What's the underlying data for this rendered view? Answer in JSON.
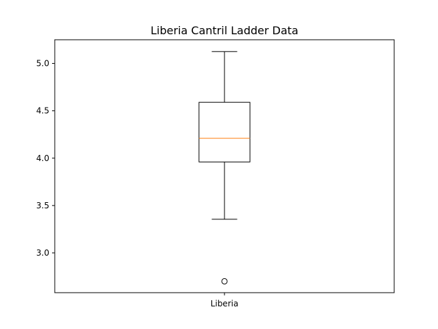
{
  "chart_data": {
    "type": "box",
    "title": "Liberia Cantril Ladder Data",
    "xlabel": "",
    "ylabel": "",
    "categories": [
      "Liberia"
    ],
    "boxes": [
      {
        "name": "Liberia",
        "whisker_low": 3.355,
        "q1": 3.96,
        "median": 4.21,
        "q3": 4.59,
        "whisker_high": 5.125,
        "outliers": [
          2.7
        ]
      }
    ],
    "ylim": [
      2.58,
      5.25
    ],
    "yticks": [
      3.0,
      3.5,
      4.0,
      4.5,
      5.0
    ],
    "ytick_labels": [
      "3.0",
      "3.5",
      "4.0",
      "4.5",
      "5.0"
    ],
    "grid": false,
    "colors": {
      "box": "#000000",
      "median": "#ff7f0e",
      "whisker": "#000000",
      "outlier": "#000000"
    }
  }
}
